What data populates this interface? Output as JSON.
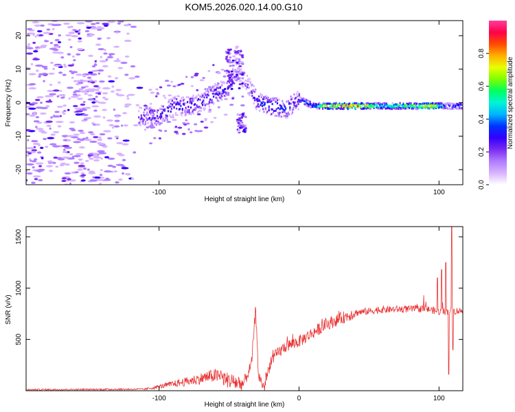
{
  "title": "KOM5.2026.020.14.00.G10",
  "chart_data": [
    {
      "type": "heatmap",
      "xlabel": "Height of straight line (km)",
      "ylabel": "Frequency (Hz)",
      "xlim": [
        -195,
        117
      ],
      "ylim": [
        -24.5,
        24.5
      ],
      "xticks": [
        -100,
        0,
        100
      ],
      "yticks": [
        -20,
        -10,
        0,
        10,
        20
      ],
      "colorbar": {
        "label": "Normalized spectral amplitude",
        "range": [
          0,
          1
        ],
        "ticks": [
          "0.0",
          "0.2",
          "0.4",
          "0.6",
          "0.8"
        ],
        "colors": [
          "#ffffff",
          "#d8b4ff",
          "#b07dff",
          "#7a2cf0",
          "#3300ff",
          "#0033ff",
          "#00b4ff",
          "#00f5d4",
          "#00ff60",
          "#7dff00",
          "#e8ff00",
          "#ffb000",
          "#ff4a00",
          "#ff004a",
          "#ff3d9a"
        ]
      },
      "ridge": [
        {
          "x": -110,
          "f": -4,
          "a": 0.25
        },
        {
          "x": -100,
          "f": -4,
          "a": 0.3
        },
        {
          "x": -90,
          "f": -1,
          "a": 0.3
        },
        {
          "x": -80,
          "f": -1,
          "a": 0.3
        },
        {
          "x": -70,
          "f": 0,
          "a": 0.3
        },
        {
          "x": -60,
          "f": 3,
          "a": 0.35
        },
        {
          "x": -52,
          "f": 4,
          "a": 0.3
        },
        {
          "x": -45,
          "f": 10,
          "a": 0.15
        },
        {
          "x": -40,
          "f": 7,
          "a": 0.15
        },
        {
          "x": -35,
          "f": 4,
          "a": 0.2
        },
        {
          "x": -30,
          "f": 0,
          "a": 0.3
        },
        {
          "x": -20,
          "f": -1,
          "a": 0.4
        },
        {
          "x": -10,
          "f": -2,
          "a": 0.3
        },
        {
          "x": 0,
          "f": 1,
          "a": 0.3
        },
        {
          "x": 10,
          "f": -1,
          "a": 0.45
        },
        {
          "x": 20,
          "f": -1,
          "a": 0.8
        },
        {
          "x": 40,
          "f": -1,
          "a": 0.9
        },
        {
          "x": 60,
          "f": -1,
          "a": 0.55
        },
        {
          "x": 80,
          "f": -1,
          "a": 0.65
        },
        {
          "x": 95,
          "f": -1,
          "a": 0.9
        },
        {
          "x": 105,
          "f": -1,
          "a": 0.3
        },
        {
          "x": 115,
          "f": -1,
          "a": 0.4
        }
      ]
    },
    {
      "type": "line",
      "xlabel": "Height of straight line (km)",
      "ylabel": "SNR (v/v)",
      "xlim": [
        -195,
        117
      ],
      "ylim": [
        0,
        1600
      ],
      "xticks": [
        -100,
        0,
        100
      ],
      "yticks": [
        500,
        1000,
        1500
      ],
      "color": "#e83030",
      "trend": [
        {
          "x": -195,
          "y": 10
        },
        {
          "x": -110,
          "y": 15
        },
        {
          "x": -100,
          "y": 40
        },
        {
          "x": -80,
          "y": 90
        },
        {
          "x": -60,
          "y": 150
        },
        {
          "x": -50,
          "y": 100
        },
        {
          "x": -40,
          "y": 60
        },
        {
          "x": -34,
          "y": 250
        },
        {
          "x": -31,
          "y": 800
        },
        {
          "x": -29,
          "y": 150
        },
        {
          "x": -25,
          "y": 30
        },
        {
          "x": -20,
          "y": 300
        },
        {
          "x": -10,
          "y": 430
        },
        {
          "x": 0,
          "y": 480
        },
        {
          "x": 20,
          "y": 650
        },
        {
          "x": 40,
          "y": 760
        },
        {
          "x": 60,
          "y": 790
        },
        {
          "x": 90,
          "y": 800
        },
        {
          "x": 100,
          "y": 770
        },
        {
          "x": 117,
          "y": 780
        }
      ],
      "spikes": [
        {
          "x": 99,
          "y": 1100
        },
        {
          "x": 102,
          "y": 1180
        },
        {
          "x": 105,
          "y": 1250
        },
        {
          "x": 107,
          "y": 160
        },
        {
          "x": 109,
          "y": 1600
        },
        {
          "x": 110,
          "y": 400
        }
      ]
    }
  ]
}
